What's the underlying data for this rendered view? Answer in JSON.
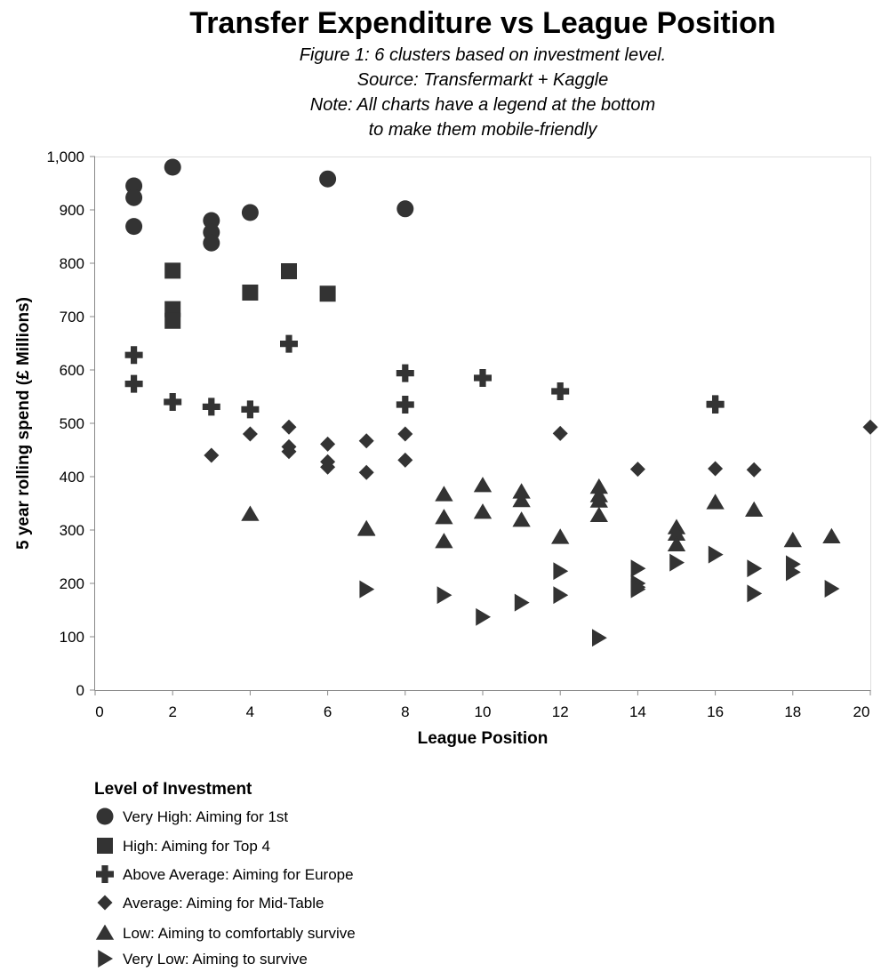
{
  "chart_data": {
    "type": "scatter",
    "title": "Transfer Expenditure vs League Position",
    "subtitle_lines": [
      "Figure 1: 6 clusters based on investment level.",
      "Source: Transfermarkt + Kaggle",
      "Note: All charts have a legend at the bottom",
      "to make them mobile-friendly"
    ],
    "xlabel": "League Position",
    "ylabel": "5 year rolling spend (£ Millions)",
    "xlim": [
      0,
      20
    ],
    "ylim": [
      0,
      1000
    ],
    "x_ticks": [
      0,
      2,
      4,
      6,
      8,
      10,
      12,
      14,
      16,
      18,
      20
    ],
    "x_tick_labels": [
      "0",
      "2",
      "4",
      "6",
      "8",
      "10",
      "12",
      "14",
      "16",
      "18",
      "20"
    ],
    "y_ticks": [
      0,
      100,
      200,
      300,
      400,
      500,
      600,
      700,
      800,
      900,
      1000
    ],
    "y_tick_labels": [
      "0",
      "100",
      "200",
      "300",
      "400",
      "500",
      "600",
      "700",
      "800",
      "900",
      "1,000"
    ],
    "grid": false,
    "legend_position": "bottom",
    "legend_title": "Level of Investment",
    "mark_color": "#333333",
    "series": [
      {
        "name": "Very High: Aiming for 1st",
        "shape": "circle",
        "points": [
          {
            "x": 1,
            "y": 945
          },
          {
            "x": 1,
            "y": 923
          },
          {
            "x": 1,
            "y": 869
          },
          {
            "x": 2,
            "y": 980
          },
          {
            "x": 3,
            "y": 880
          },
          {
            "x": 3,
            "y": 858
          },
          {
            "x": 3,
            "y": 838
          },
          {
            "x": 4,
            "y": 895
          },
          {
            "x": 6,
            "y": 958
          },
          {
            "x": 8,
            "y": 902
          }
        ]
      },
      {
        "name": "High: Aiming for Top 4",
        "shape": "square",
        "points": [
          {
            "x": 2,
            "y": 786
          },
          {
            "x": 2,
            "y": 714
          },
          {
            "x": 2,
            "y": 692
          },
          {
            "x": 4,
            "y": 745
          },
          {
            "x": 5,
            "y": 785
          },
          {
            "x": 6,
            "y": 743
          }
        ]
      },
      {
        "name": "Above Average: Aiming for Europe",
        "shape": "cross",
        "points": [
          {
            "x": 1,
            "y": 628
          },
          {
            "x": 1,
            "y": 574
          },
          {
            "x": 2,
            "y": 540
          },
          {
            "x": 3,
            "y": 531
          },
          {
            "x": 4,
            "y": 526
          },
          {
            "x": 5,
            "y": 649
          },
          {
            "x": 8,
            "y": 594
          },
          {
            "x": 8,
            "y": 535
          },
          {
            "x": 10,
            "y": 585
          },
          {
            "x": 12,
            "y": 560
          },
          {
            "x": 16,
            "y": 536
          },
          {
            "x": 16,
            "y": 535
          }
        ]
      },
      {
        "name": "Average: Aiming for Mid-Table",
        "shape": "diamond",
        "points": [
          {
            "x": 3,
            "y": 440
          },
          {
            "x": 4,
            "y": 480
          },
          {
            "x": 5,
            "y": 493
          },
          {
            "x": 5,
            "y": 456
          },
          {
            "x": 5,
            "y": 447
          },
          {
            "x": 6,
            "y": 461
          },
          {
            "x": 6,
            "y": 428
          },
          {
            "x": 6,
            "y": 418
          },
          {
            "x": 7,
            "y": 467
          },
          {
            "x": 7,
            "y": 408
          },
          {
            "x": 8,
            "y": 480
          },
          {
            "x": 8,
            "y": 431
          },
          {
            "x": 12,
            "y": 481
          },
          {
            "x": 14,
            "y": 414
          },
          {
            "x": 16,
            "y": 415
          },
          {
            "x": 17,
            "y": 413
          },
          {
            "x": 20,
            "y": 493
          }
        ]
      },
      {
        "name": "Low: Aiming to comfortably survive",
        "shape": "triangle-up",
        "points": [
          {
            "x": 4,
            "y": 330
          },
          {
            "x": 7,
            "y": 303
          },
          {
            "x": 7,
            "y": 302
          },
          {
            "x": 9,
            "y": 367
          },
          {
            "x": 9,
            "y": 324
          },
          {
            "x": 9,
            "y": 279
          },
          {
            "x": 10,
            "y": 384
          },
          {
            "x": 10,
            "y": 334
          },
          {
            "x": 11,
            "y": 372
          },
          {
            "x": 11,
            "y": 356
          },
          {
            "x": 11,
            "y": 319
          },
          {
            "x": 12,
            "y": 287
          },
          {
            "x": 13,
            "y": 381
          },
          {
            "x": 13,
            "y": 365
          },
          {
            "x": 13,
            "y": 355
          },
          {
            "x": 13,
            "y": 328
          },
          {
            "x": 15,
            "y": 305
          },
          {
            "x": 15,
            "y": 293
          },
          {
            "x": 15,
            "y": 273
          },
          {
            "x": 16,
            "y": 352
          },
          {
            "x": 17,
            "y": 338
          },
          {
            "x": 18,
            "y": 281
          },
          {
            "x": 19,
            "y": 288
          }
        ]
      },
      {
        "name": "Very Low: Aiming to survive",
        "shape": "triangle-right",
        "points": [
          {
            "x": 7,
            "y": 189
          },
          {
            "x": 9,
            "y": 178
          },
          {
            "x": 10,
            "y": 137
          },
          {
            "x": 11,
            "y": 164
          },
          {
            "x": 12,
            "y": 223
          },
          {
            "x": 12,
            "y": 178
          },
          {
            "x": 13,
            "y": 98
          },
          {
            "x": 14,
            "y": 228
          },
          {
            "x": 14,
            "y": 200
          },
          {
            "x": 14,
            "y": 193
          },
          {
            "x": 14,
            "y": 189
          },
          {
            "x": 15,
            "y": 239
          },
          {
            "x": 16,
            "y": 254
          },
          {
            "x": 17,
            "y": 228
          },
          {
            "x": 17,
            "y": 181
          },
          {
            "x": 18,
            "y": 236
          },
          {
            "x": 18,
            "y": 221
          },
          {
            "x": 19,
            "y": 190
          }
        ]
      }
    ]
  }
}
